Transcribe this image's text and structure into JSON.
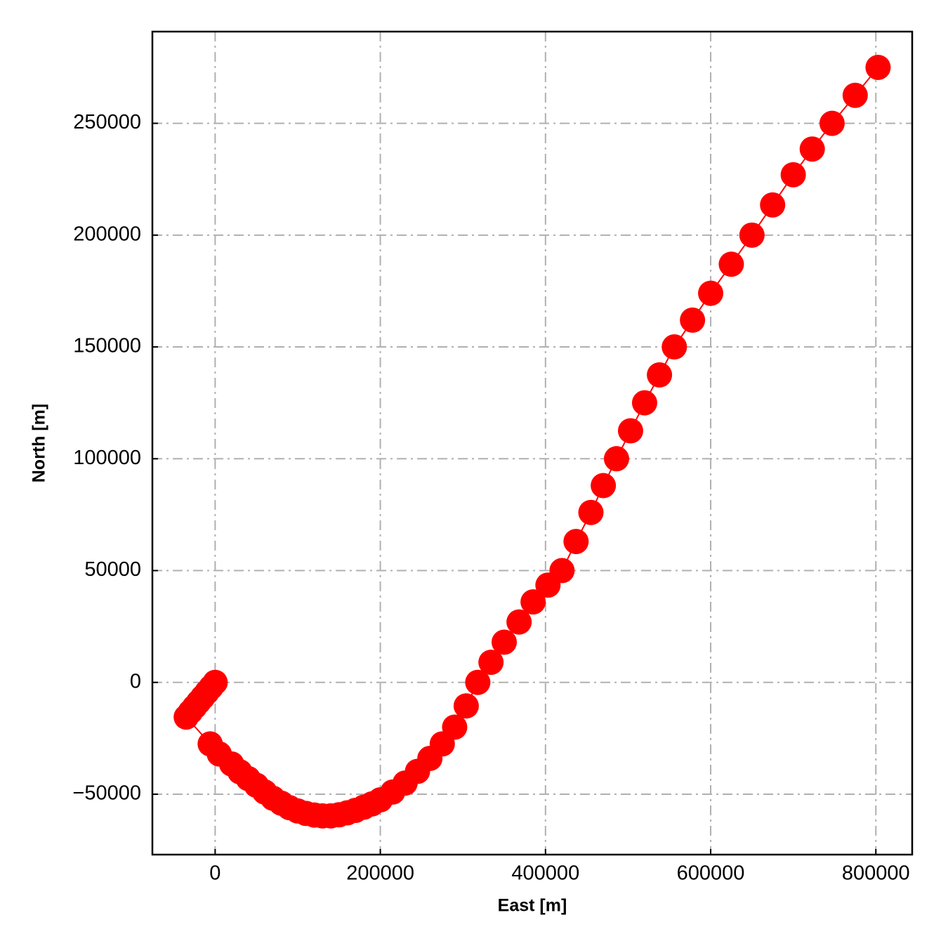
{
  "chart_data": {
    "type": "line",
    "x_label": "East [m]",
    "y_label": "North [m]",
    "xlim": [
      -76000,
      844000
    ],
    "ylim": [
      -77000,
      291000
    ],
    "xticks": [
      0,
      200000,
      400000,
      600000,
      800000
    ],
    "yticks": [
      {
        "value": -50000,
        "label": "−50000"
      },
      0,
      50000,
      100000,
      150000,
      200000,
      250000
    ],
    "grid": true,
    "series": [
      {
        "color": "#ff0000",
        "x": [
          0,
          -5000,
          -10000,
          -15000,
          -20000,
          -25000,
          -30000,
          -35000,
          -6000,
          5000,
          20000,
          30000,
          40000,
          50000,
          60000,
          70000,
          80000,
          90000,
          100000,
          110000,
          120000,
          130000,
          140000,
          150000,
          160000,
          170000,
          180000,
          190000,
          200000,
          215000,
          230000,
          245000,
          260000,
          275000,
          290000,
          304000,
          318000,
          334000,
          350000,
          368000,
          385000,
          403000,
          420000,
          437000,
          455000,
          470000,
          486000,
          503000,
          520000,
          538000,
          556000,
          578000,
          600000,
          625000,
          650000,
          675000,
          700000,
          723000,
          747000,
          775000,
          802700
        ],
        "values": [
          0,
          -2200,
          -4400,
          -6600,
          -8800,
          -11000,
          -13200,
          -15500,
          -27500,
          -32000,
          -36500,
          -40000,
          -43000,
          -46000,
          -49000,
          -51800,
          -54000,
          -56000,
          -57500,
          -58600,
          -59300,
          -59700,
          -59700,
          -59200,
          -58300,
          -57200,
          -55800,
          -54300,
          -52500,
          -49000,
          -45000,
          -39800,
          -34000,
          -27500,
          -20000,
          -10500,
          0,
          9000,
          18000,
          27000,
          36000,
          43500,
          50000,
          63000,
          76000,
          88000,
          100000,
          112500,
          125000,
          137500,
          150000,
          162000,
          174000,
          187000,
          200000,
          213500,
          227000,
          238500,
          250000,
          262500,
          275000
        ]
      }
    ]
  }
}
